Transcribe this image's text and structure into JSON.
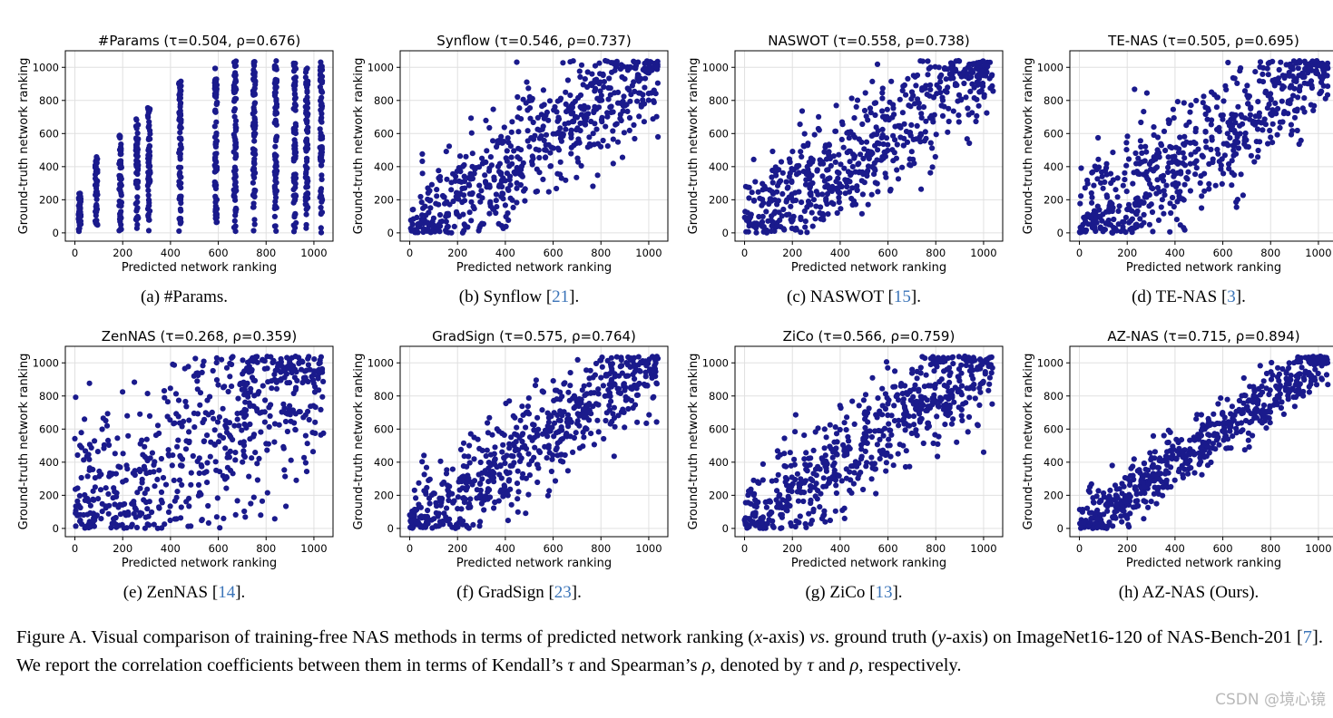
{
  "figure": {
    "caption": {
      "label": "Figure A.",
      "seg1": " Visual comparison of training-free NAS methods in terms of predicted network ranking (",
      "x_sym": "x",
      "seg2": "-axis) ",
      "vs": "vs",
      "seg3": ". ground truth (",
      "y_sym": "y",
      "seg4": "-axis) on ImageNet16-120 of NAS-Bench-201 [",
      "ref": "7",
      "seg5": "]. We report the correlation coefficients between them in terms of Kendall’s ",
      "tau": "τ",
      "seg6": " and Spearman’s ",
      "rho": "ρ",
      "seg7": ", denoted by ",
      "tau2": "τ",
      "seg8": " and ",
      "rho2": "ρ",
      "seg9": ", respectively."
    },
    "watermark": "CSDN @境心镜"
  },
  "style": {
    "point_color": "#1a1a8c",
    "grid_color": "#e0e0e0"
  },
  "chart_data": [
    {
      "type": "scatter",
      "title": "#Params (τ=0.504, ρ=0.676)",
      "xlabel": "Predicted network ranking",
      "ylabel": "Ground-truth network ranking",
      "xlim": [
        -40,
        1080
      ],
      "ylim": [
        -50,
        1100
      ],
      "xticks": [
        0,
        200,
        400,
        600,
        800,
        1000
      ],
      "yticks": [
        0,
        200,
        400,
        600,
        800,
        1000
      ],
      "grid": true,
      "tau": 0.504,
      "rho": 0.676,
      "caption_prefix": "(a) #Params.",
      "caption_ref": "",
      "caption_suffix": "",
      "distribution": "columns",
      "columns": [
        [
          20,
          240
        ],
        [
          90,
          460
        ],
        [
          190,
          590
        ],
        [
          260,
          700
        ],
        [
          310,
          760
        ],
        [
          440,
          920
        ],
        [
          590,
          1000
        ],
        [
          670,
          1040
        ],
        [
          750,
          1040
        ],
        [
          840,
          1040
        ],
        [
          920,
          1040
        ],
        [
          970,
          1040
        ],
        [
          1030,
          1040
        ]
      ]
    },
    {
      "type": "scatter",
      "title": "Synflow (τ=0.546, ρ=0.737)",
      "xlabel": "Predicted network ranking",
      "ylabel": "Ground-truth network ranking",
      "xlim": [
        -40,
        1080
      ],
      "ylim": [
        -50,
        1100
      ],
      "xticks": [
        0,
        200,
        400,
        600,
        800,
        1000
      ],
      "yticks": [
        0,
        200,
        400,
        600,
        800,
        1000
      ],
      "grid": true,
      "tau": 0.546,
      "rho": 0.737,
      "caption_prefix": "(b) Synflow [",
      "caption_ref": "21",
      "caption_suffix": "].",
      "distribution": "correlated",
      "spread": 0.48
    },
    {
      "type": "scatter",
      "title": "NASWOT (τ=0.558, ρ=0.738)",
      "xlabel": "Predicted network ranking",
      "ylabel": "Ground-truth network ranking",
      "xlim": [
        -40,
        1080
      ],
      "ylim": [
        -50,
        1100
      ],
      "xticks": [
        0,
        200,
        400,
        600,
        800,
        1000
      ],
      "yticks": [
        0,
        200,
        400,
        600,
        800,
        1000
      ],
      "grid": true,
      "tau": 0.558,
      "rho": 0.738,
      "caption_prefix": "(c) NASWOT [",
      "caption_ref": "15",
      "caption_suffix": "].",
      "distribution": "correlated",
      "spread": 0.46
    },
    {
      "type": "scatter",
      "title": "TE-NAS (τ=0.505, ρ=0.695)",
      "xlabel": "Predicted network ranking",
      "ylabel": "Ground-truth network ranking",
      "xlim": [
        -40,
        1080
      ],
      "ylim": [
        -50,
        1100
      ],
      "xticks": [
        0,
        200,
        400,
        600,
        800,
        1000
      ],
      "yticks": [
        0,
        200,
        400,
        600,
        800,
        1000
      ],
      "grid": true,
      "tau": 0.505,
      "rho": 0.695,
      "caption_prefix": "(d) TE-NAS [",
      "caption_ref": "3",
      "caption_suffix": "].",
      "distribution": "correlated",
      "spread": 0.5
    },
    {
      "type": "scatter",
      "title": "ZenNAS (τ=0.268, ρ=0.359)",
      "xlabel": "Predicted network ranking",
      "ylabel": "Ground-truth network ranking",
      "xlim": [
        -40,
        1080
      ],
      "ylim": [
        -50,
        1100
      ],
      "xticks": [
        0,
        200,
        400,
        600,
        800,
        1000
      ],
      "yticks": [
        0,
        200,
        400,
        600,
        800,
        1000
      ],
      "grid": true,
      "tau": 0.268,
      "rho": 0.359,
      "caption_prefix": "(e) ZenNAS [",
      "caption_ref": "14",
      "caption_suffix": "].",
      "distribution": "correlated",
      "spread": 0.85
    },
    {
      "type": "scatter",
      "title": "GradSign (τ=0.575, ρ=0.764)",
      "xlabel": "Predicted network ranking",
      "ylabel": "Ground-truth network ranking",
      "xlim": [
        -40,
        1080
      ],
      "ylim": [
        -50,
        1100
      ],
      "xticks": [
        0,
        200,
        400,
        600,
        800,
        1000
      ],
      "yticks": [
        0,
        200,
        400,
        600,
        800,
        1000
      ],
      "grid": true,
      "tau": 0.575,
      "rho": 0.764,
      "caption_prefix": "(f) GradSign [",
      "caption_ref": "23",
      "caption_suffix": "].",
      "distribution": "correlated",
      "spread": 0.44
    },
    {
      "type": "scatter",
      "title": "ZiCo (τ=0.566, ρ=0.759)",
      "xlabel": "Predicted network ranking",
      "ylabel": "Ground-truth network ranking",
      "xlim": [
        -40,
        1080
      ],
      "ylim": [
        -50,
        1100
      ],
      "xticks": [
        0,
        200,
        400,
        600,
        800,
        1000
      ],
      "yticks": [
        0,
        200,
        400,
        600,
        800,
        1000
      ],
      "grid": true,
      "tau": 0.566,
      "rho": 0.759,
      "caption_prefix": "(g) ZiCo [",
      "caption_ref": "13",
      "caption_suffix": "].",
      "distribution": "correlated",
      "spread": 0.45
    },
    {
      "type": "scatter",
      "title": "AZ-NAS (τ=0.715, ρ=0.894)",
      "xlabel": "Predicted network ranking",
      "ylabel": "Ground-truth network ranking",
      "xlim": [
        -40,
        1080
      ],
      "ylim": [
        -50,
        1100
      ],
      "xticks": [
        0,
        200,
        400,
        600,
        800,
        1000
      ],
      "yticks": [
        0,
        200,
        400,
        600,
        800,
        1000
      ],
      "grid": true,
      "tau": 0.715,
      "rho": 0.894,
      "caption_prefix": "(h) AZ-NAS (Ours).",
      "caption_ref": "",
      "caption_suffix": "",
      "distribution": "correlated",
      "spread": 0.24
    }
  ]
}
